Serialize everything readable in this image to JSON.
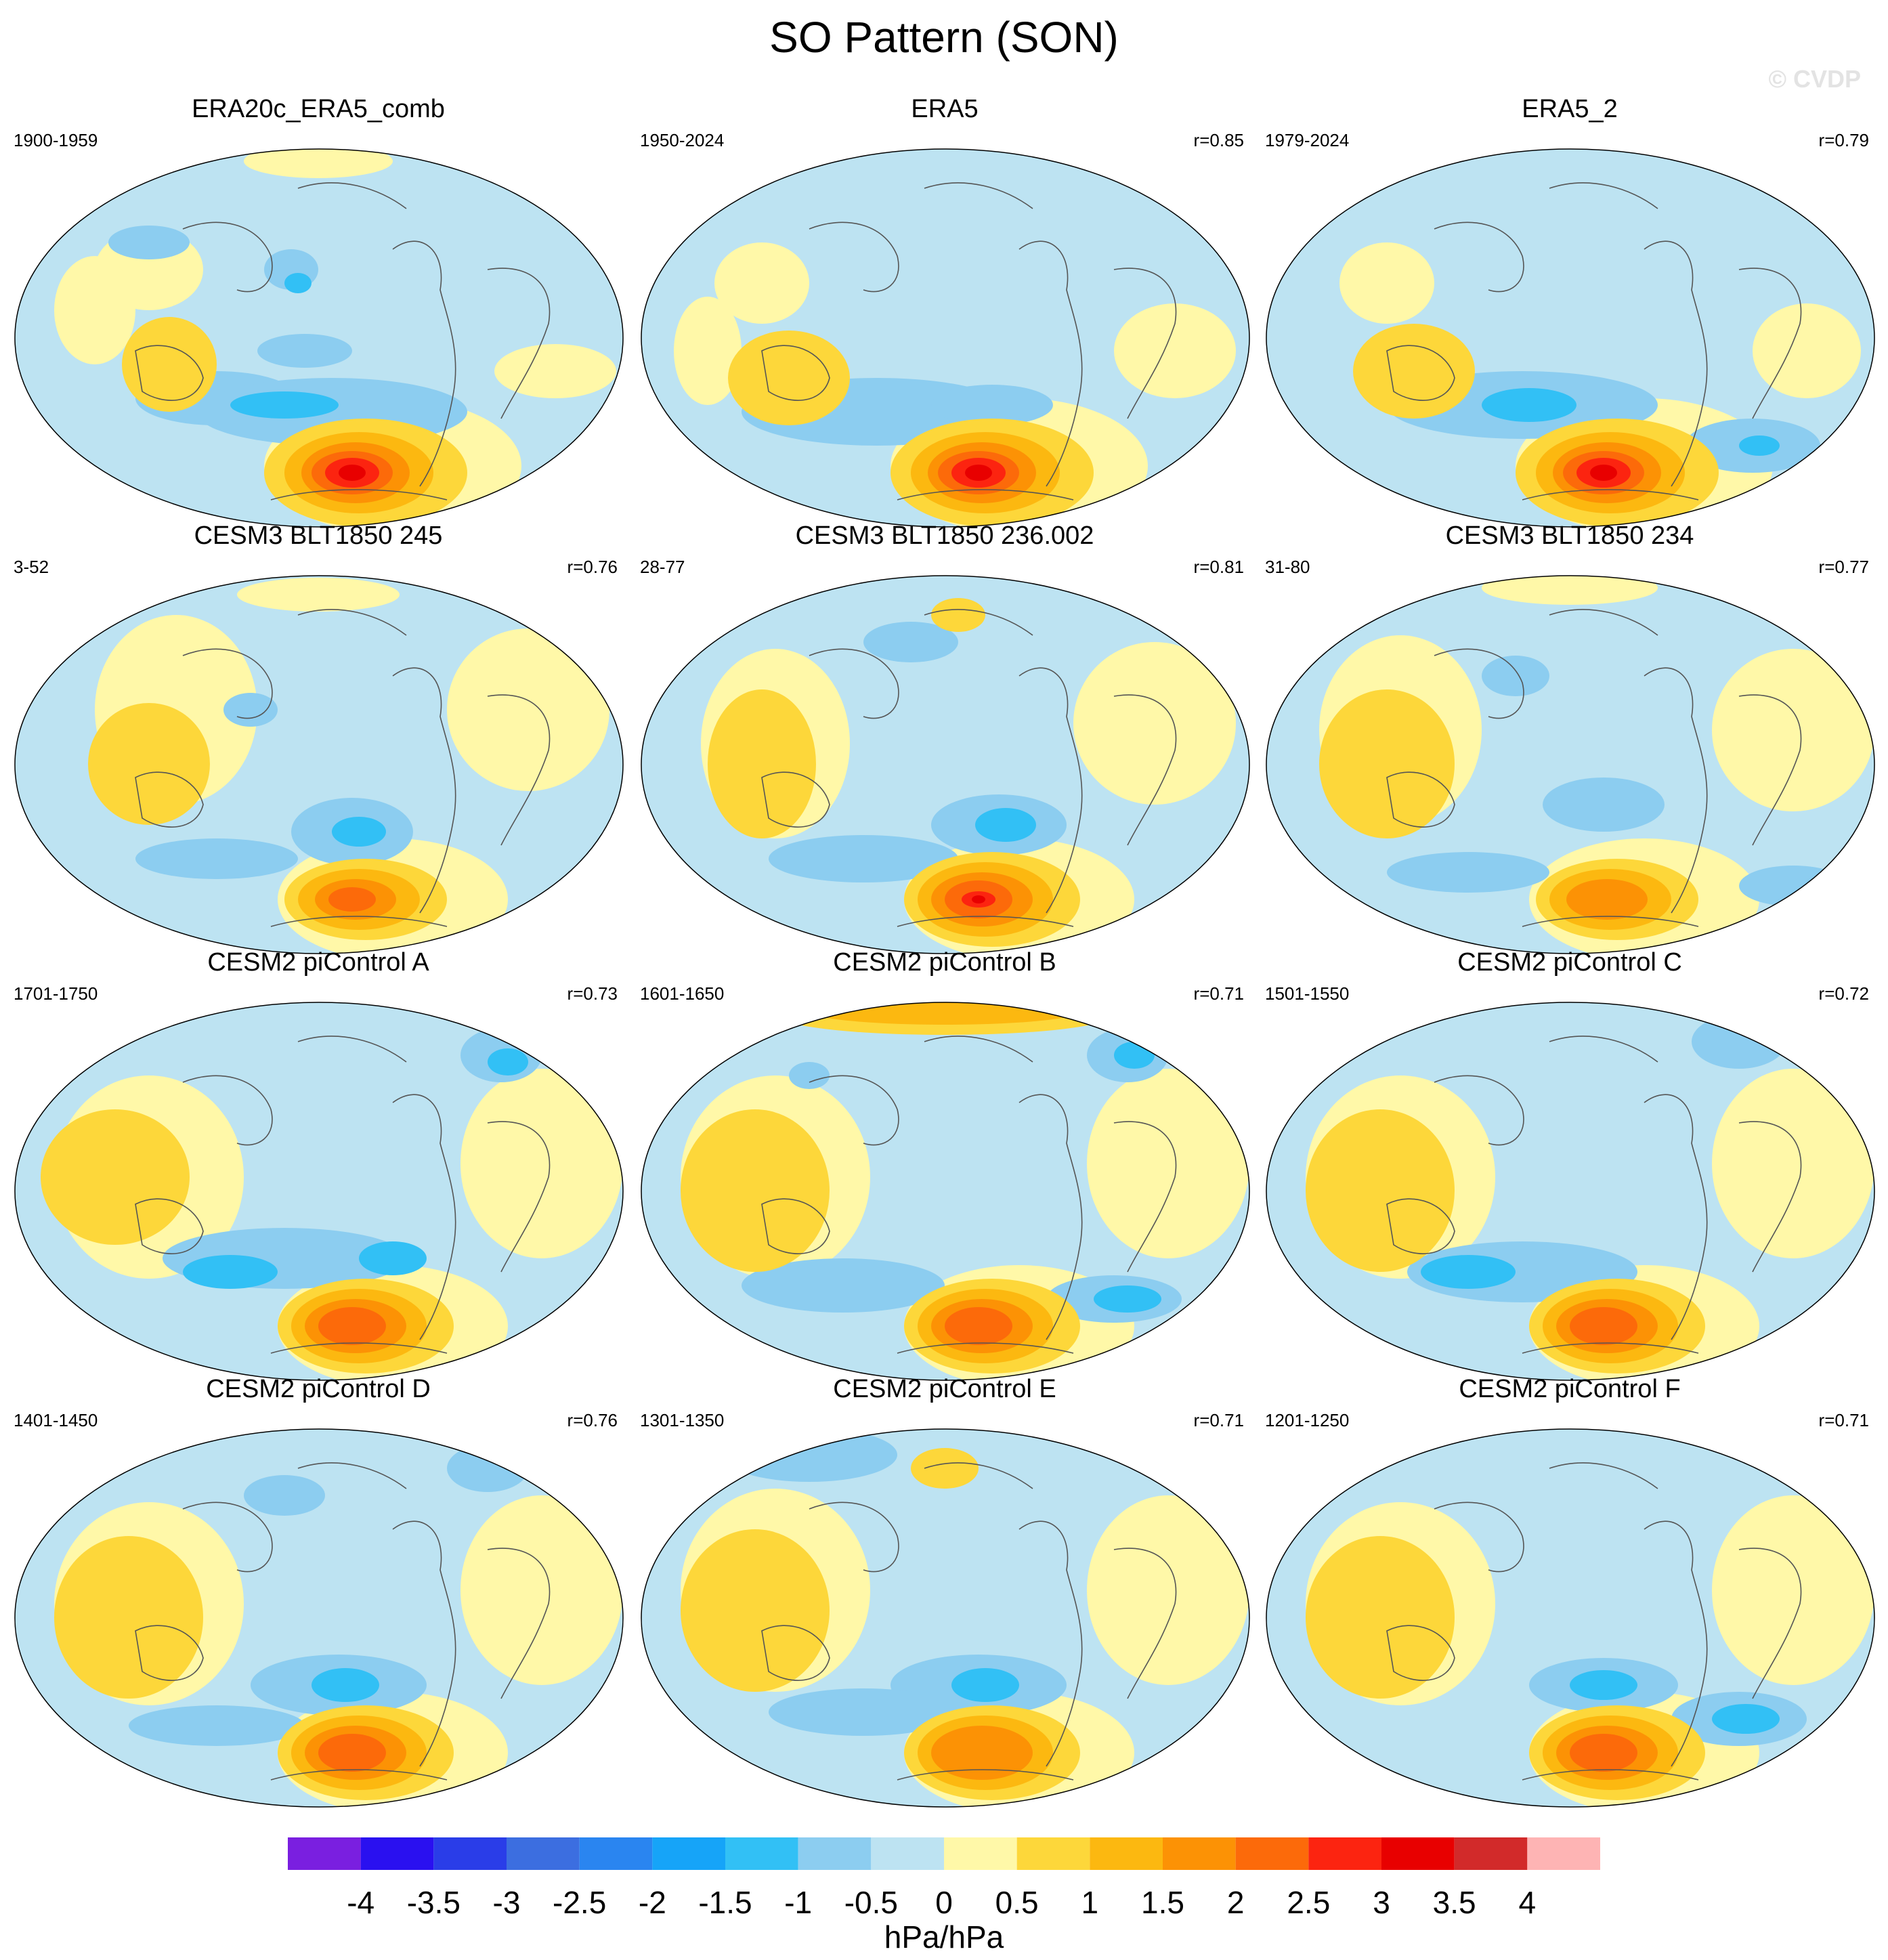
{
  "figure": {
    "title": "SO Pattern (SON)",
    "watermark": "© CVDP",
    "units": "hPa/hPa"
  },
  "panels": [
    {
      "title": "ERA20c_ERA5_comb",
      "years": "1900-1959",
      "r": ""
    },
    {
      "title": "ERA5",
      "years": "1950-2024",
      "r": "r=0.85"
    },
    {
      "title": "ERA5_2",
      "years": "1979-2024",
      "r": "r=0.79"
    },
    {
      "title": "CESM3 BLT1850 245",
      "years": "3-52",
      "r": "r=0.76"
    },
    {
      "title": "CESM3 BLT1850 236.002",
      "years": "28-77",
      "r": "r=0.81"
    },
    {
      "title": "CESM3 BLT1850 234",
      "years": "31-80",
      "r": "r=0.77"
    },
    {
      "title": "CESM2 piControl A",
      "years": "1701-1750",
      "r": "r=0.73"
    },
    {
      "title": "CESM2 piControl B",
      "years": "1601-1650",
      "r": "r=0.71"
    },
    {
      "title": "CESM2 piControl C",
      "years": "1501-1550",
      "r": "r=0.72"
    },
    {
      "title": "CESM2 piControl D",
      "years": "1401-1450",
      "r": "r=0.76"
    },
    {
      "title": "CESM2 piControl E",
      "years": "1301-1350",
      "r": "r=0.71"
    },
    {
      "title": "CESM2 piControl F",
      "years": "1201-1250",
      "r": "r=0.71"
    }
  ],
  "colorbar": {
    "labels": [
      "-4",
      "-3.5",
      "-3",
      "-2.5",
      "-2",
      "-1.5",
      "-1",
      "-0.5",
      "0",
      "0.5",
      "1",
      "1.5",
      "2",
      "2.5",
      "3",
      "3.5",
      "4"
    ],
    "colors": [
      "#7a1fe0",
      "#2a10f0",
      "#2a3de8",
      "#3c6ee0",
      "#2a85f0",
      "#16a4f8",
      "#32c0f5",
      "#8ccdf0",
      "#bde3f2",
      "#fff8a8",
      "#fdd73a",
      "#fcb810",
      "#fc9205",
      "#fc6a0a",
      "#fc2410",
      "#e80000",
      "#d22a2a",
      "#feb4b4"
    ]
  },
  "map_colors": {
    "neg05": "#bde3f2",
    "neg1": "#8ccdf0",
    "neg15": "#32c0f5",
    "pos0": "#fff8a8",
    "pos05": "#fdd73a",
    "pos1": "#fcb810",
    "pos15": "#fc9205",
    "pos2": "#fc6a0a",
    "pos25": "#fc2410",
    "pos3": "#e80000"
  }
}
